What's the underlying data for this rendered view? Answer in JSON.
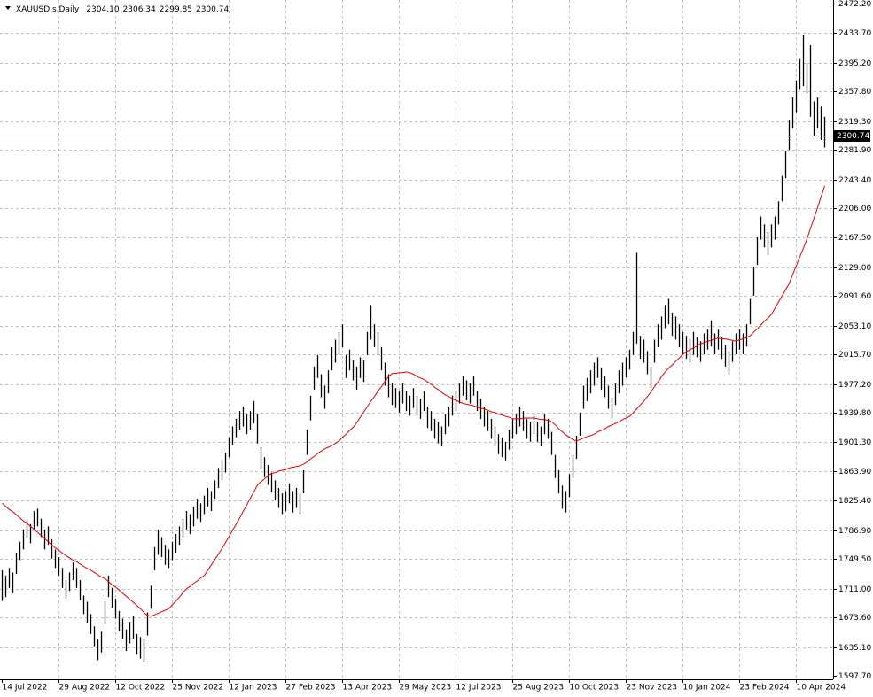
{
  "chart_data": {
    "type": "ohlc",
    "symbol": "XAUUSD.s,Daily",
    "header_prices": [
      {
        "value": 2304.1,
        "label": "2304.10"
      },
      {
        "value": 2306.34,
        "label": "2306.34"
      },
      {
        "value": 2299.85,
        "label": "2299.85"
      },
      {
        "value": 2300.74,
        "label": "2300.74"
      }
    ],
    "last_price": {
      "value": 2300.74,
      "label": "2300.74"
    },
    "ylim": [
      1597.7,
      2472.2
    ],
    "yticks": [
      {
        "value": 2472.2,
        "label": "2472.20"
      },
      {
        "value": 2433.7,
        "label": "2433.70"
      },
      {
        "value": 2395.2,
        "label": "2395.20"
      },
      {
        "value": 2357.8,
        "label": "2357.80"
      },
      {
        "value": 2319.3,
        "label": "2319.30"
      },
      {
        "value": 2281.9,
        "label": "2281.90"
      },
      {
        "value": 2243.4,
        "label": "2243.40"
      },
      {
        "value": 2206,
        "label": "2206.00"
      },
      {
        "value": 2167.5,
        "label": "2167.50"
      },
      {
        "value": 2129,
        "label": "2129.00"
      },
      {
        "value": 2091.6,
        "label": "2091.60"
      },
      {
        "value": 2053.1,
        "label": "2053.10"
      },
      {
        "value": 2015.7,
        "label": "2015.70"
      },
      {
        "value": 1977.2,
        "label": "1977.20"
      },
      {
        "value": 1939.8,
        "label": "1939.80"
      },
      {
        "value": 1901.3,
        "label": "1901.30"
      },
      {
        "value": 1863.9,
        "label": "1863.90"
      },
      {
        "value": 1825.4,
        "label": "1825.40"
      },
      {
        "value": 1786.9,
        "label": "1786.90"
      },
      {
        "value": 1749.5,
        "label": "1749.50"
      },
      {
        "value": 1711,
        "label": "1711.00"
      },
      {
        "value": 1673.6,
        "label": "1673.60"
      },
      {
        "value": 1635.1,
        "label": "1635.10"
      },
      {
        "value": 1597.7,
        "label": "1597.70"
      }
    ],
    "grid": true,
    "bar_color": "#000000",
    "categories": [
      "14 Jul 2022",
      null,
      null,
      null,
      null,
      null,
      null,
      null,
      null,
      null,
      null,
      null,
      null,
      null,
      null,
      null,
      "29 Aug 2022",
      null,
      null,
      null,
      null,
      null,
      null,
      null,
      null,
      null,
      null,
      null,
      null,
      null,
      null,
      null,
      "12 Oct 2022",
      null,
      null,
      null,
      null,
      null,
      null,
      null,
      null,
      null,
      null,
      null,
      null,
      null,
      null,
      null,
      "25 Nov 2022",
      null,
      null,
      null,
      null,
      null,
      null,
      null,
      null,
      null,
      null,
      null,
      null,
      null,
      null,
      null,
      "12 Jan 2023",
      null,
      null,
      null,
      null,
      null,
      null,
      null,
      null,
      null,
      null,
      null,
      null,
      null,
      null,
      null,
      "27 Feb 2023",
      null,
      null,
      null,
      null,
      null,
      null,
      null,
      null,
      null,
      null,
      null,
      null,
      null,
      null,
      null,
      "13 Apr 2023",
      null,
      null,
      null,
      null,
      null,
      null,
      null,
      null,
      null,
      null,
      null,
      null,
      null,
      null,
      null,
      "29 May 2023",
      null,
      null,
      null,
      null,
      null,
      null,
      null,
      null,
      null,
      null,
      null,
      null,
      null,
      null,
      null,
      "12 Jul 2023",
      null,
      null,
      null,
      null,
      null,
      null,
      null,
      null,
      null,
      null,
      null,
      null,
      null,
      null,
      null,
      "25 Aug 2023",
      null,
      null,
      null,
      null,
      null,
      null,
      null,
      null,
      null,
      null,
      null,
      null,
      null,
      null,
      null,
      "10 Oct 2023",
      null,
      null,
      null,
      null,
      null,
      null,
      null,
      null,
      null,
      null,
      null,
      null,
      null,
      null,
      null,
      "23 Nov 2023",
      null,
      null,
      null,
      null,
      null,
      null,
      null,
      null,
      null,
      null,
      null,
      null,
      null,
      null,
      null,
      "10 Jan 2024",
      null,
      null,
      null,
      null,
      null,
      null,
      null,
      null,
      null,
      null,
      null,
      null,
      null,
      null,
      null,
      "23 Feb 2024",
      null,
      null,
      null,
      null,
      null,
      null,
      null,
      null,
      null,
      null,
      null,
      null,
      null,
      null,
      null,
      "10 Apr 2024",
      null,
      null,
      null,
      null,
      null,
      null,
      null,
      null
    ],
    "high": [
      1735,
      1728,
      1738,
      1732,
      1758,
      1772,
      1788,
      1800,
      1795,
      1812,
      1815,
      1802,
      1788,
      1792,
      1775,
      1762,
      1752,
      1738,
      1722,
      1732,
      1745,
      1738,
      1722,
      1702,
      1694,
      1678,
      1662,
      1645,
      1655,
      1695,
      1728,
      1712,
      1698,
      1682,
      1672,
      1658,
      1668,
      1675,
      1652,
      1648,
      1646,
      1680,
      1715,
      1765,
      1788,
      1778,
      1768,
      1762,
      1772,
      1782,
      1792,
      1802,
      1812,
      1808,
      1818,
      1828,
      1822,
      1832,
      1842,
      1838,
      1852,
      1868,
      1878,
      1888,
      1908,
      1922,
      1932,
      1942,
      1948,
      1938,
      1942,
      1955,
      1938,
      1895,
      1882,
      1872,
      1862,
      1852,
      1842,
      1835,
      1838,
      1848,
      1838,
      1842,
      1835,
      1865,
      1918,
      1962,
      2000,
      2015,
      1990,
      1975,
      1995,
      2025,
      2035,
      2045,
      2055,
      2015,
      2022,
      2008,
      2000,
      2012,
      2008,
      2045,
      2080,
      2055,
      2045,
      2025,
      2005,
      1990,
      1978,
      1972,
      1968,
      1978,
      1968,
      1962,
      1972,
      1962,
      1958,
      1968,
      1948,
      1942,
      1932,
      1928,
      1922,
      1938,
      1948,
      1962,
      1968,
      1978,
      1988,
      1982,
      1978,
      1988,
      1968,
      1958,
      1948,
      1942,
      1932,
      1922,
      1912,
      1908,
      1902,
      1918,
      1932,
      1938,
      1948,
      1942,
      1932,
      1928,
      1938,
      1928,
      1922,
      1938,
      1932,
      1915,
      1885,
      1865,
      1845,
      1838,
      1860,
      1885,
      1910,
      1940,
      1975,
      1985,
      1995,
      2005,
      2012,
      1998,
      1988,
      1975,
      1960,
      1978,
      1995,
      2005,
      2012,
      2022,
      2045,
      2148,
      2040,
      2035,
      2020,
      2000,
      2035,
      2055,
      2065,
      2080,
      2088,
      2070,
      2065,
      2055,
      2045,
      2040,
      2035,
      2045,
      2038,
      2033,
      2043,
      2048,
      2060,
      2043,
      2048,
      2038,
      2028,
      2020,
      2033,
      2043,
      2048,
      2043,
      2055,
      2088,
      2130,
      2168,
      2195,
      2185,
      2175,
      2185,
      2195,
      2215,
      2248,
      2280,
      2320,
      2350,
      2372,
      2400,
      2431,
      2395,
      2418,
      2345,
      2350,
      2338,
      2325
    ],
    "low": [
      1695,
      1700,
      1712,
      1705,
      1730,
      1748,
      1762,
      1778,
      1770,
      1788,
      1792,
      1778,
      1762,
      1768,
      1750,
      1738,
      1728,
      1712,
      1698,
      1708,
      1722,
      1712,
      1696,
      1678,
      1666,
      1652,
      1636,
      1618,
      1628,
      1665,
      1700,
      1686,
      1672,
      1656,
      1646,
      1630,
      1640,
      1646,
      1625,
      1620,
      1616,
      1650,
      1685,
      1735,
      1755,
      1752,
      1742,
      1738,
      1748,
      1758,
      1768,
      1778,
      1788,
      1782,
      1792,
      1802,
      1798,
      1808,
      1818,
      1812,
      1828,
      1842,
      1852,
      1862,
      1882,
      1898,
      1908,
      1918,
      1922,
      1912,
      1918,
      1926,
      1900,
      1866,
      1856,
      1846,
      1836,
      1826,
      1816,
      1808,
      1812,
      1822,
      1810,
      1816,
      1808,
      1835,
      1885,
      1930,
      1970,
      1985,
      1960,
      1945,
      1965,
      1995,
      2005,
      2015,
      2025,
      1985,
      1995,
      1982,
      1970,
      1985,
      1980,
      2015,
      2035,
      2025,
      2015,
      1995,
      1975,
      1960,
      1950,
      1946,
      1940,
      1952,
      1942,
      1936,
      1946,
      1936,
      1932,
      1942,
      1920,
      1916,
      1906,
      1900,
      1896,
      1912,
      1922,
      1936,
      1942,
      1952,
      1962,
      1956,
      1952,
      1962,
      1942,
      1932,
      1922,
      1916,
      1906,
      1896,
      1886,
      1882,
      1878,
      1892,
      1906,
      1912,
      1922,
      1916,
      1906,
      1902,
      1912,
      1902,
      1896,
      1912,
      1906,
      1885,
      1855,
      1835,
      1815,
      1810,
      1830,
      1855,
      1880,
      1910,
      1945,
      1955,
      1965,
      1975,
      1985,
      1970,
      1960,
      1945,
      1932,
      1950,
      1965,
      1975,
      1986,
      1996,
      2015,
      2030,
      2010,
      2005,
      1990,
      1972,
      2005,
      2025,
      2035,
      2050,
      2055,
      2040,
      2035,
      2025,
      2015,
      2010,
      2005,
      2015,
      2012,
      2006,
      2016,
      2022,
      2026,
      2016,
      2022,
      2010,
      2000,
      1990,
      2006,
      2016,
      2022,
      2016,
      2026,
      2055,
      2092,
      2132,
      2165,
      2155,
      2145,
      2155,
      2165,
      2185,
      2215,
      2245,
      2282,
      2310,
      2330,
      2360,
      2365,
      2355,
      2325,
      2300,
      2310,
      2295,
      2285
    ],
    "ma": {
      "color": "#e00000",
      "values": [
        1822,
        1818,
        1814,
        1811,
        1807,
        1803,
        1799,
        1796,
        1792,
        1788,
        1784,
        1780,
        1776,
        1772,
        1768,
        1764,
        1761,
        1757,
        1754,
        1751,
        1748,
        1746,
        1743,
        1740,
        1737,
        1735,
        1732,
        1729,
        1726,
        1724,
        1720,
        1716,
        1713,
        1709,
        1705,
        1701,
        1697,
        1693,
        1689,
        1685,
        1680,
        1676,
        1675,
        1677,
        1679,
        1681,
        1683,
        1685,
        1690,
        1695,
        1700,
        1706,
        1711,
        1714,
        1718,
        1721,
        1725,
        1728,
        1735,
        1742,
        1749,
        1756,
        1763,
        1771,
        1779,
        1787,
        1795,
        1803,
        1812,
        1820,
        1829,
        1837,
        1846,
        1850,
        1854,
        1858,
        1861,
        1862,
        1864,
        1865,
        1866,
        1868,
        1869,
        1870,
        1871,
        1873,
        1876,
        1880,
        1883,
        1887,
        1890,
        1893,
        1895,
        1897,
        1900,
        1903,
        1908,
        1912,
        1917,
        1921,
        1927,
        1934,
        1941,
        1948,
        1955,
        1961,
        1968,
        1974,
        1981,
        1987,
        1991,
        1991,
        1992,
        1992,
        1993,
        1992,
        1990,
        1987,
        1985,
        1983,
        1980,
        1977,
        1973,
        1970,
        1966,
        1963,
        1961,
        1958,
        1956,
        1954,
        1952,
        1951,
        1950,
        1949,
        1947,
        1946,
        1945,
        1943,
        1941,
        1940,
        1938,
        1937,
        1935,
        1934,
        1932,
        1932,
        1932,
        1933,
        1933,
        1933,
        1933,
        1932,
        1931,
        1931,
        1930,
        1928,
        1924,
        1919,
        1915,
        1911,
        1908,
        1905,
        1903,
        1905,
        1907,
        1909,
        1910,
        1912,
        1915,
        1917,
        1919,
        1922,
        1924,
        1926,
        1928,
        1931,
        1933,
        1935,
        1940,
        1945,
        1950,
        1955,
        1961,
        1967,
        1974,
        1980,
        1987,
        1993,
        1998,
        2002,
        2007,
        2011,
        2016,
        2019,
        2022,
        2024,
        2027,
        2030,
        2031,
        2033,
        2034,
        2036,
        2037,
        2036,
        2036,
        2035,
        2034,
        2033,
        2035,
        2036,
        2038,
        2040,
        2045,
        2049,
        2054,
        2059,
        2063,
        2068,
        2076,
        2084,
        2092,
        2100,
        2108,
        2120,
        2131,
        2143,
        2154,
        2166,
        2180,
        2193,
        2207,
        2221,
        2235
      ]
    }
  }
}
